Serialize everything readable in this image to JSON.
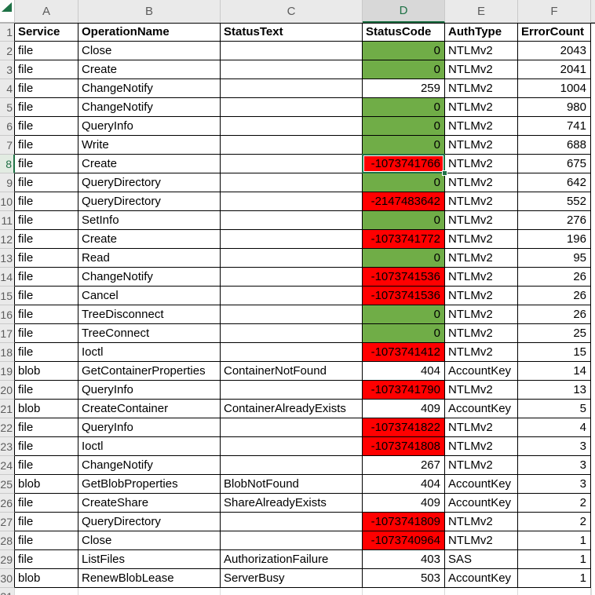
{
  "colors": {
    "green_fill": "#70AD47",
    "red_fill": "#FF0000",
    "selection_green": "#1E7145",
    "header_bg": "#EAEAEA",
    "selected_header_bg": "#D8D8D8"
  },
  "selection": {
    "cell_ref": "D8",
    "column": "D",
    "row": 8
  },
  "sheet": {
    "column_letters": [
      "A",
      "B",
      "C",
      "D",
      "E",
      "F"
    ],
    "corner_icon": "select-all-triangle",
    "first_row_number": "1"
  },
  "table": {
    "headers": [
      "Service",
      "OperationName",
      "StatusText",
      "StatusCode",
      "AuthType",
      "ErrorCount"
    ],
    "rows": [
      {
        "n": 2,
        "service": "file",
        "operation": "Close",
        "status_text": "",
        "status_code": "0",
        "status_fill": "green",
        "auth_type": "NTLMv2",
        "error_count": "2043"
      },
      {
        "n": 3,
        "service": "file",
        "operation": "Create",
        "status_text": "",
        "status_code": "0",
        "status_fill": "green",
        "auth_type": "NTLMv2",
        "error_count": "2041"
      },
      {
        "n": 4,
        "service": "file",
        "operation": "ChangeNotify",
        "status_text": "",
        "status_code": "259",
        "status_fill": "none",
        "auth_type": "NTLMv2",
        "error_count": "1004"
      },
      {
        "n": 5,
        "service": "file",
        "operation": "ChangeNotify",
        "status_text": "",
        "status_code": "0",
        "status_fill": "green",
        "auth_type": "NTLMv2",
        "error_count": "980"
      },
      {
        "n": 6,
        "service": "file",
        "operation": "QueryInfo",
        "status_text": "",
        "status_code": "0",
        "status_fill": "green",
        "auth_type": "NTLMv2",
        "error_count": "741"
      },
      {
        "n": 7,
        "service": "file",
        "operation": "Write",
        "status_text": "",
        "status_code": "0",
        "status_fill": "green",
        "auth_type": "NTLMv2",
        "error_count": "688"
      },
      {
        "n": 8,
        "service": "file",
        "operation": "Create",
        "status_text": "",
        "status_code": "-1073741766",
        "status_fill": "red",
        "auth_type": "NTLMv2",
        "error_count": "675"
      },
      {
        "n": 9,
        "service": "file",
        "operation": "QueryDirectory",
        "status_text": "",
        "status_code": "0",
        "status_fill": "green",
        "auth_type": "NTLMv2",
        "error_count": "642"
      },
      {
        "n": 10,
        "service": "file",
        "operation": "QueryDirectory",
        "status_text": "",
        "status_code": "-2147483642",
        "status_fill": "red",
        "auth_type": "NTLMv2",
        "error_count": "552"
      },
      {
        "n": 11,
        "service": "file",
        "operation": "SetInfo",
        "status_text": "",
        "status_code": "0",
        "status_fill": "green",
        "auth_type": "NTLMv2",
        "error_count": "276"
      },
      {
        "n": 12,
        "service": "file",
        "operation": "Create",
        "status_text": "",
        "status_code": "-1073741772",
        "status_fill": "red",
        "auth_type": "NTLMv2",
        "error_count": "196"
      },
      {
        "n": 13,
        "service": "file",
        "operation": "Read",
        "status_text": "",
        "status_code": "0",
        "status_fill": "green",
        "auth_type": "NTLMv2",
        "error_count": "95"
      },
      {
        "n": 14,
        "service": "file",
        "operation": "ChangeNotify",
        "status_text": "",
        "status_code": "-1073741536",
        "status_fill": "red",
        "auth_type": "NTLMv2",
        "error_count": "26"
      },
      {
        "n": 15,
        "service": "file",
        "operation": "Cancel",
        "status_text": "",
        "status_code": "-1073741536",
        "status_fill": "red",
        "auth_type": "NTLMv2",
        "error_count": "26"
      },
      {
        "n": 16,
        "service": "file",
        "operation": "TreeDisconnect",
        "status_text": "",
        "status_code": "0",
        "status_fill": "green",
        "auth_type": "NTLMv2",
        "error_count": "26"
      },
      {
        "n": 17,
        "service": "file",
        "operation": "TreeConnect",
        "status_text": "",
        "status_code": "0",
        "status_fill": "green",
        "auth_type": "NTLMv2",
        "error_count": "25"
      },
      {
        "n": 18,
        "service": "file",
        "operation": "Ioctl",
        "status_text": "",
        "status_code": "-1073741412",
        "status_fill": "red",
        "auth_type": "NTLMv2",
        "error_count": "15"
      },
      {
        "n": 19,
        "service": "blob",
        "operation": "GetContainerProperties",
        "status_text": "ContainerNotFound",
        "status_code": "404",
        "status_fill": "none",
        "auth_type": "AccountKey",
        "error_count": "14"
      },
      {
        "n": 20,
        "service": "file",
        "operation": "QueryInfo",
        "status_text": "",
        "status_code": "-1073741790",
        "status_fill": "red",
        "auth_type": "NTLMv2",
        "error_count": "13"
      },
      {
        "n": 21,
        "service": "blob",
        "operation": "CreateContainer",
        "status_text": "ContainerAlreadyExists",
        "status_code": "409",
        "status_fill": "none",
        "auth_type": "AccountKey",
        "error_count": "5"
      },
      {
        "n": 22,
        "service": "file",
        "operation": "QueryInfo",
        "status_text": "",
        "status_code": "-1073741822",
        "status_fill": "red",
        "auth_type": "NTLMv2",
        "error_count": "4"
      },
      {
        "n": 23,
        "service": "file",
        "operation": "Ioctl",
        "status_text": "",
        "status_code": "-1073741808",
        "status_fill": "red",
        "auth_type": "NTLMv2",
        "error_count": "3"
      },
      {
        "n": 24,
        "service": "file",
        "operation": "ChangeNotify",
        "status_text": "",
        "status_code": "267",
        "status_fill": "none",
        "auth_type": "NTLMv2",
        "error_count": "3"
      },
      {
        "n": 25,
        "service": "blob",
        "operation": "GetBlobProperties",
        "status_text": "BlobNotFound",
        "status_code": "404",
        "status_fill": "none",
        "auth_type": "AccountKey",
        "error_count": "3"
      },
      {
        "n": 26,
        "service": "file",
        "operation": "CreateShare",
        "status_text": "ShareAlreadyExists",
        "status_code": "409",
        "status_fill": "none",
        "auth_type": "AccountKey",
        "error_count": "2"
      },
      {
        "n": 27,
        "service": "file",
        "operation": "QueryDirectory",
        "status_text": "",
        "status_code": "-1073741809",
        "status_fill": "red",
        "auth_type": "NTLMv2",
        "error_count": "2"
      },
      {
        "n": 28,
        "service": "file",
        "operation": "Close",
        "status_text": "",
        "status_code": "-1073740964",
        "status_fill": "red",
        "auth_type": "NTLMv2",
        "error_count": "1"
      },
      {
        "n": 29,
        "service": "file",
        "operation": "ListFiles",
        "status_text": "AuthorizationFailure",
        "status_code": "403",
        "status_fill": "none",
        "auth_type": "SAS",
        "error_count": "1"
      },
      {
        "n": 30,
        "service": "blob",
        "operation": "RenewBlobLease",
        "status_text": "ServerBusy",
        "status_code": "503",
        "status_fill": "none",
        "auth_type": "AccountKey",
        "error_count": "1"
      }
    ]
  },
  "partial_row": {
    "number": "31"
  }
}
